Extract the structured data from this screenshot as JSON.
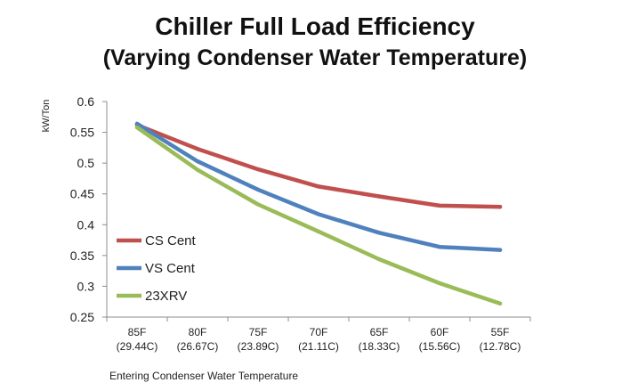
{
  "title": "Chiller Full Load Efficiency",
  "subtitle": "(Varying Condenser Water Temperature)",
  "chart_data": {
    "type": "line",
    "title": "Chiller Full Load Efficiency",
    "subtitle": "(Varying Condenser Water Temperature)",
    "xlabel": "Entering Condenser Water Temperature",
    "ylabel": "kW/Ton",
    "categories": [
      [
        "85F",
        "(29.44C)"
      ],
      [
        "80F",
        "(26.67C)"
      ],
      [
        "75F",
        "(23.89C)"
      ],
      [
        "70F",
        "(21.11C)"
      ],
      [
        "65F",
        "(18.33C)"
      ],
      [
        "60F",
        "(15.56C)"
      ],
      [
        "55F",
        "(12.78C)"
      ]
    ],
    "ylim": [
      0.25,
      0.6
    ],
    "yticks": [
      "0.6",
      "0.55",
      "0.5",
      "0.45",
      "0.4",
      "0.35",
      "0.3",
      "0.25"
    ],
    "legend_position": "bottom-left",
    "series": [
      {
        "name": "CS Cent",
        "color": "#c0504d",
        "values": [
          0.562,
          0.523,
          0.49,
          0.462,
          0.446,
          0.431,
          0.429
        ]
      },
      {
        "name": "VS Cent",
        "color": "#4f81bd",
        "values": [
          0.564,
          0.503,
          0.457,
          0.417,
          0.387,
          0.364,
          0.359
        ]
      },
      {
        "name": "23XRV",
        "color": "#9bbb59",
        "values": [
          0.558,
          0.489,
          0.433,
          0.389,
          0.344,
          0.305,
          0.272
        ]
      }
    ]
  }
}
